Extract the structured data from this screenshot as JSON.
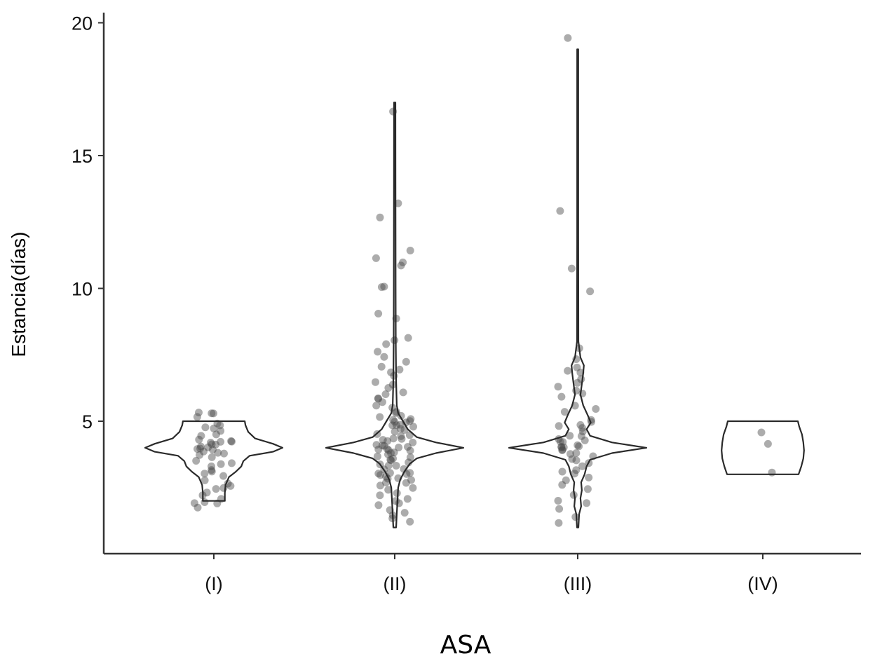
{
  "chart_data": {
    "type": "violin",
    "title": "",
    "xlabel": "ASA",
    "ylabel": "Estancia(días)",
    "categories": [
      "(I)",
      "(II)",
      "(III)",
      "(IV)"
    ],
    "yticks": [
      5,
      10,
      15,
      20
    ],
    "ytick_labels": [
      "5",
      "10",
      "15",
      "20"
    ],
    "ylim": [
      0,
      20.3
    ],
    "grid": false,
    "legend": "none",
    "violins": [
      {
        "category": "(I)",
        "min": 2,
        "max": 5,
        "density": [
          [
            2,
            0.16
          ],
          [
            2.3,
            0.16
          ],
          [
            2.6,
            0.17
          ],
          [
            2.9,
            0.22
          ],
          [
            3.1,
            0.32
          ],
          [
            3.3,
            0.4
          ],
          [
            3.5,
            0.43
          ],
          [
            3.7,
            0.52
          ],
          [
            3.85,
            0.86
          ],
          [
            4.0,
            1.0
          ],
          [
            4.15,
            0.86
          ],
          [
            4.35,
            0.6
          ],
          [
            4.6,
            0.5
          ],
          [
            4.85,
            0.46
          ],
          [
            5.0,
            0.45
          ]
        ]
      },
      {
        "category": "(II)",
        "min": 1,
        "max": 17,
        "density": [
          [
            1,
            0.02
          ],
          [
            1.5,
            0.03
          ],
          [
            2,
            0.04
          ],
          [
            2.5,
            0.05
          ],
          [
            2.8,
            0.08
          ],
          [
            3.1,
            0.14
          ],
          [
            3.4,
            0.22
          ],
          [
            3.6,
            0.32
          ],
          [
            3.8,
            0.6
          ],
          [
            4.0,
            1.0
          ],
          [
            4.2,
            0.6
          ],
          [
            4.4,
            0.32
          ],
          [
            4.7,
            0.19
          ],
          [
            5.0,
            0.12
          ],
          [
            5.3,
            0.05
          ],
          [
            5.6,
            0.03
          ],
          [
            6.5,
            0.02
          ],
          [
            8,
            0.015
          ],
          [
            10,
            0.013
          ],
          [
            12,
            0.012
          ],
          [
            14,
            0.011
          ],
          [
            17,
            0.01
          ]
        ]
      },
      {
        "category": "(III)",
        "min": 1,
        "max": 19,
        "density": [
          [
            1,
            0.01
          ],
          [
            1.5,
            0.02
          ],
          [
            1.8,
            0.05
          ],
          [
            2.1,
            0.04
          ],
          [
            2.4,
            0.06
          ],
          [
            2.7,
            0.05
          ],
          [
            3.0,
            0.1
          ],
          [
            3.3,
            0.13
          ],
          [
            3.55,
            0.18
          ],
          [
            3.8,
            0.5
          ],
          [
            4.0,
            1.0
          ],
          [
            4.2,
            0.5
          ],
          [
            4.45,
            0.18
          ],
          [
            4.7,
            0.13
          ],
          [
            4.95,
            0.19
          ],
          [
            5.2,
            0.15
          ],
          [
            5.6,
            0.08
          ],
          [
            6.0,
            0.04
          ],
          [
            6.4,
            0.06
          ],
          [
            6.8,
            0.08
          ],
          [
            7.1,
            0.09
          ],
          [
            7.4,
            0.04
          ],
          [
            8,
            0.01
          ],
          [
            12,
            0.008
          ],
          [
            19,
            0.008
          ]
        ]
      },
      {
        "category": "(IV)",
        "min": 3,
        "max": 5,
        "density": [
          [
            3,
            0.52
          ],
          [
            3.3,
            0.56
          ],
          [
            3.6,
            0.59
          ],
          [
            3.9,
            0.6
          ],
          [
            4.2,
            0.59
          ],
          [
            4.5,
            0.57
          ],
          [
            4.8,
            0.53
          ],
          [
            5,
            0.51
          ]
        ]
      }
    ],
    "points": [
      {
        "category": "(I)",
        "values": [
          5.3,
          5.3,
          5.3,
          5.2,
          4.9,
          4.8,
          4.8,
          4.7,
          4.6,
          4.5,
          4.4,
          4.3,
          4.3,
          4.2,
          4.2,
          4.2,
          4.1,
          4.1,
          4.1,
          4.0,
          4.0,
          4.0,
          3.9,
          3.9,
          3.8,
          3.8,
          3.7,
          3.6,
          3.5,
          3.4,
          3.4,
          3.3,
          3.2,
          3.1,
          3.0,
          2.9,
          2.8,
          2.7,
          2.6,
          2.5,
          2.4,
          2.3,
          2.2,
          2.1,
          2.0,
          1.9,
          1.9,
          1.8
        ]
      },
      {
        "category": "(II)",
        "values": [
          16.7,
          13.2,
          12.7,
          11.4,
          11.1,
          11.0,
          10.9,
          10.1,
          10.0,
          9.0,
          8.9,
          8.1,
          8.0,
          7.9,
          7.6,
          7.4,
          7.2,
          7.0,
          6.9,
          6.8,
          6.7,
          6.5,
          6.4,
          6.3,
          6.1,
          6.0,
          5.9,
          5.8,
          5.7,
          5.6,
          5.5,
          5.4,
          5.3,
          5.2,
          5.2,
          5.1,
          5.1,
          5.0,
          5.0,
          5.0,
          4.9,
          4.9,
          4.8,
          4.8,
          4.7,
          4.7,
          4.6,
          4.5,
          4.5,
          4.4,
          4.4,
          4.3,
          4.3,
          4.2,
          4.2,
          4.1,
          4.1,
          4.1,
          4.0,
          4.0,
          4.0,
          3.9,
          3.9,
          3.9,
          3.8,
          3.8,
          3.7,
          3.7,
          3.6,
          3.6,
          3.5,
          3.5,
          3.4,
          3.4,
          3.3,
          3.3,
          3.2,
          3.2,
          3.1,
          3.1,
          3.0,
          3.0,
          3.0,
          2.9,
          2.9,
          2.8,
          2.8,
          2.7,
          2.7,
          2.6,
          2.5,
          2.4,
          2.3,
          2.2,
          2.1,
          2.0,
          1.9,
          1.8,
          1.7,
          1.6,
          1.5,
          1.3,
          1.2
        ]
      },
      {
        "category": "(III)",
        "values": [
          19.4,
          12.9,
          10.8,
          9.9,
          7.7,
          7.3,
          7.0,
          6.9,
          6.8,
          6.6,
          6.4,
          6.3,
          6.1,
          6.0,
          5.9,
          5.6,
          5.5,
          5.3,
          5.1,
          5.0,
          4.9,
          4.8,
          4.7,
          4.6,
          4.5,
          4.4,
          4.3,
          4.3,
          4.2,
          4.2,
          4.1,
          4.1,
          4.0,
          4.0,
          4.0,
          3.9,
          3.9,
          3.8,
          3.8,
          3.7,
          3.6,
          3.5,
          3.4,
          3.3,
          3.2,
          3.1,
          3.0,
          2.9,
          2.8,
          2.6,
          2.4,
          2.2,
          2.0,
          1.9,
          1.7,
          1.4,
          1.2
        ]
      },
      {
        "category": "(IV)",
        "values": [
          4.6,
          4.1,
          3.1
        ]
      }
    ]
  }
}
